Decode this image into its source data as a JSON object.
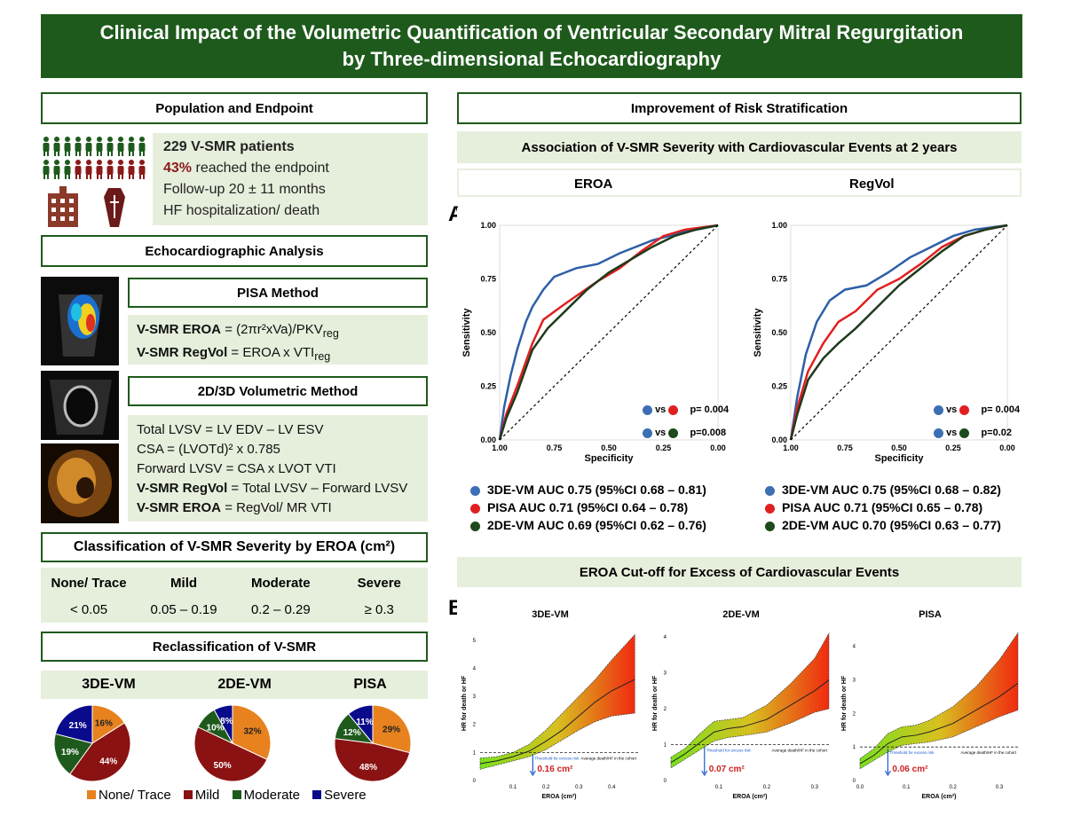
{
  "title": "Clinical Impact of the Volumetric Quantification of Ventricular Secondary Mitral Regurgitation by Three-dimensional Echocardiography",
  "population": {
    "header": "Population and Endpoint",
    "patients": "229 V-SMR patients",
    "endpoint_pct": "43%",
    "endpoint_text": "reached the endpoint",
    "followup": "Follow-up 20 ± 11 months",
    "outcome": "HF hospitalization/ death"
  },
  "echo": {
    "header": "Echocardiographic Analysis",
    "pisa_header": "PISA Method",
    "pisa_eroa_label": "V-SMR EROA",
    "pisa_eroa_formula": "= (2πr²xVa)/PKV",
    "pisa_eroa_sub": "reg",
    "pisa_regvol_label": "V-SMR RegVol",
    "pisa_regvol_formula": "= EROA x VTI",
    "pisa_regvol_sub": "reg",
    "vol_header": "2D/3D Volumetric Method",
    "vol_lines": [
      "Total LVSV = LV EDV – LV ESV",
      "CSA = (LVOTd)² x 0.785",
      "Forward LVSV = CSA x LVOT VTI"
    ],
    "vol_regvol_label": "V-SMR RegVol",
    "vol_regvol_formula": "= Total LVSV – Forward LVSV",
    "vol_eroa_label": "V-SMR EROA",
    "vol_eroa_formula": "= RegVol/ MR VTI"
  },
  "classification": {
    "header": "Classification of V-SMR Severity by EROA (cm²)",
    "columns": [
      "None/ Trace",
      "Mild",
      "Moderate",
      "Severe"
    ],
    "values": [
      "< 0.05",
      "0.05 – 0.19",
      "0.2 – 0.29",
      "≥ 0.3"
    ]
  },
  "reclass": {
    "header": "Reclassification of V-SMR",
    "methods": [
      "3DE-VM",
      "2DE-VM",
      "PISA"
    ],
    "legend": [
      "None/ Trace",
      "Mild",
      "Moderate",
      "Severe"
    ],
    "colors": [
      "#e8821e",
      "#8b1212",
      "#1e5a1c",
      "#0a0a8c"
    ]
  },
  "risk": {
    "header": "Improvement of Risk Stratification",
    "assoc_header": "Association of V-SMR Severity with Cardiovascular Events at 2 years",
    "col_eroa": "EROA",
    "col_regvol": "RegVol",
    "panel_a": "A",
    "panel_b": "B",
    "cutoff_header": "EROA Cut-off for Excess of Cardiovascular Events",
    "roc_eroa_p1": "p= 0.004",
    "roc_eroa_p2": "p=0.008",
    "roc_regvol_p1": "p= 0.004",
    "roc_regvol_p2": "p=0.02",
    "vs": "vs",
    "auc_eroa": [
      "3DE-VM AUC 0.75 (95%CI 0.68 – 0.81)",
      "PISA AUC 0.71 (95%CI 0.64 – 0.78)",
      "2DE-VM AUC 0.69 (95%CI 0.62 – 0.76)"
    ],
    "auc_regvol": [
      "3DE-VM AUC 0.75 (95%CI 0.68 – 0.82)",
      "PISA AUC 0.71 (95%CI 0.65 – 0.78)",
      "2DE-VM AUC 0.70 (95%CI 0.63 – 0.77)"
    ],
    "auc_colors": [
      "#3c6fb4",
      "#e02020",
      "#1e4a1c"
    ]
  },
  "chart_data": [
    {
      "type": "line",
      "title": "EROA",
      "xlabel": "Specificity",
      "ylabel": "Sensitivity",
      "xlim": [
        1.0,
        0.0
      ],
      "ylim": [
        0,
        1
      ],
      "x_ticks": [
        "1.00",
        "0.75",
        "0.50",
        "0.25",
        "0.00"
      ],
      "y_ticks": [
        "0.00",
        "0.25",
        "0.50",
        "0.75",
        "1.00"
      ],
      "series": [
        {
          "name": "3DE-VM",
          "color": "#2e5fa8",
          "fpr": [
            0,
            0.02,
            0.05,
            0.08,
            0.12,
            0.15,
            0.2,
            0.25,
            0.3,
            0.35,
            0.45,
            0.55,
            0.7,
            0.85,
            1
          ],
          "tpr": [
            0,
            0.15,
            0.3,
            0.42,
            0.55,
            0.62,
            0.7,
            0.76,
            0.78,
            0.8,
            0.82,
            0.87,
            0.93,
            0.97,
            1
          ]
        },
        {
          "name": "PISA",
          "color": "#e02020",
          "fpr": [
            0,
            0.03,
            0.08,
            0.15,
            0.2,
            0.28,
            0.35,
            0.45,
            0.55,
            0.65,
            0.75,
            0.85,
            1
          ],
          "tpr": [
            0,
            0.12,
            0.25,
            0.45,
            0.56,
            0.62,
            0.67,
            0.74,
            0.8,
            0.88,
            0.95,
            0.98,
            1
          ]
        },
        {
          "name": "2DE-VM",
          "color": "#1e3a1c",
          "fpr": [
            0,
            0.03,
            0.08,
            0.15,
            0.22,
            0.3,
            0.4,
            0.5,
            0.6,
            0.7,
            0.8,
            0.9,
            1
          ],
          "tpr": [
            0,
            0.1,
            0.22,
            0.42,
            0.52,
            0.6,
            0.7,
            0.78,
            0.84,
            0.9,
            0.95,
            0.98,
            1
          ]
        },
        {
          "name": "reference",
          "color": "#000000",
          "fpr": [
            0,
            1
          ],
          "tpr": [
            0,
            1
          ]
        }
      ]
    },
    {
      "type": "line",
      "title": "RegVol",
      "xlabel": "Specificity",
      "ylabel": "Sensitivity",
      "xlim": [
        1.0,
        0.0
      ],
      "ylim": [
        0,
        1
      ],
      "x_ticks": [
        "1.00",
        "0.75",
        "0.50",
        "0.25",
        "0.00"
      ],
      "y_ticks": [
        "0.00",
        "0.25",
        "0.50",
        "0.75",
        "1.00"
      ],
      "series": [
        {
          "name": "3DE-VM",
          "color": "#2e5fa8",
          "fpr": [
            0,
            0.03,
            0.07,
            0.12,
            0.18,
            0.25,
            0.35,
            0.45,
            0.55,
            0.65,
            0.75,
            0.85,
            1
          ],
          "tpr": [
            0,
            0.2,
            0.4,
            0.55,
            0.65,
            0.7,
            0.72,
            0.78,
            0.85,
            0.9,
            0.95,
            0.98,
            1
          ]
        },
        {
          "name": "PISA",
          "color": "#e02020",
          "fpr": [
            0,
            0.03,
            0.08,
            0.15,
            0.22,
            0.3,
            0.4,
            0.5,
            0.6,
            0.7,
            0.8,
            0.9,
            1
          ],
          "tpr": [
            0,
            0.15,
            0.32,
            0.45,
            0.55,
            0.6,
            0.7,
            0.75,
            0.82,
            0.9,
            0.95,
            0.98,
            1
          ]
        },
        {
          "name": "2DE-VM",
          "color": "#1e3a1c",
          "fpr": [
            0,
            0.03,
            0.08,
            0.15,
            0.22,
            0.3,
            0.4,
            0.5,
            0.6,
            0.7,
            0.8,
            0.9,
            1
          ],
          "tpr": [
            0,
            0.12,
            0.28,
            0.38,
            0.45,
            0.52,
            0.62,
            0.72,
            0.8,
            0.88,
            0.95,
            0.98,
            1
          ]
        },
        {
          "name": "reference",
          "color": "#000000",
          "fpr": [
            0,
            1
          ],
          "tpr": [
            0,
            1
          ]
        }
      ]
    },
    {
      "type": "pie",
      "title": "3DE-VM",
      "categories": [
        "None/ Trace",
        "Mild",
        "Moderate",
        "Severe"
      ],
      "values": [
        16,
        44,
        19,
        21
      ],
      "labels": [
        "16%",
        "44%",
        "19%",
        "21%"
      ]
    },
    {
      "type": "pie",
      "title": "2DE-VM",
      "categories": [
        "None/ Trace",
        "Mild",
        "Moderate",
        "Severe"
      ],
      "values": [
        32,
        50,
        10,
        8
      ],
      "labels": [
        "32%",
        "50%",
        "10%",
        "8%"
      ]
    },
    {
      "type": "pie",
      "title": "PISA",
      "categories": [
        "None/ Trace",
        "Mild",
        "Moderate",
        "Severe"
      ],
      "values": [
        29,
        48,
        12,
        11
      ],
      "labels": [
        "29%",
        "48%",
        "12%",
        "11%"
      ]
    },
    {
      "type": "area",
      "title": "3DE-VM",
      "xlabel": "EROA (cm²)",
      "ylabel": "HR for death or HF",
      "xlim": [
        0,
        0.48
      ],
      "ylim": [
        0,
        5.5
      ],
      "x_ticks": [
        "0.1",
        "0.2",
        "0.3",
        "0.4"
      ],
      "y_ticks": [
        "0",
        "1",
        "2",
        "3",
        "4",
        "5"
      ],
      "x": [
        0,
        0.05,
        0.1,
        0.15,
        0.2,
        0.25,
        0.3,
        0.35,
        0.4,
        0.47
      ],
      "hr": [
        0.6,
        0.7,
        0.85,
        1.05,
        1.4,
        1.8,
        2.3,
        2.8,
        3.2,
        3.6
      ],
      "lower": [
        0.4,
        0.55,
        0.7,
        0.85,
        1.1,
        1.45,
        1.8,
        2.1,
        2.3,
        2.4
      ],
      "upper": [
        0.8,
        0.85,
        1.0,
        1.3,
        1.8,
        2.4,
        3.0,
        3.6,
        4.3,
        5.2
      ],
      "cutoff": 0.16,
      "cutoff_label": "0.16 cm²",
      "reference_line": "Average death/HF in the cohort",
      "threshold_label": "Threshold for excess risk"
    },
    {
      "type": "area",
      "title": "2DE-VM",
      "xlabel": "EROA (cm²)",
      "ylabel": "HR for death or HF",
      "xlim": [
        0,
        0.33
      ],
      "ylim": [
        0,
        4.3
      ],
      "x_ticks": [
        "0.1",
        "0.2",
        "0.3"
      ],
      "y_ticks": [
        "0",
        "1",
        "2",
        "3",
        "4"
      ],
      "x": [
        0,
        0.03,
        0.06,
        0.09,
        0.12,
        0.15,
        0.2,
        0.25,
        0.3,
        0.33
      ],
      "hr": [
        0.5,
        0.75,
        1.05,
        1.35,
        1.45,
        1.5,
        1.7,
        2.1,
        2.5,
        2.8
      ],
      "lower": [
        0.35,
        0.6,
        0.85,
        1.1,
        1.2,
        1.25,
        1.35,
        1.6,
        1.9,
        2.0
      ],
      "upper": [
        0.65,
        0.9,
        1.3,
        1.65,
        1.7,
        1.75,
        2.1,
        2.7,
        3.4,
        4.1
      ],
      "cutoff": 0.07,
      "cutoff_label": "0.07 cm²",
      "reference_line": "Average death/HF in the cohort",
      "threshold_label": "Threshold for excess risk"
    },
    {
      "type": "area",
      "title": "PISA",
      "xlabel": "EROA (cm²)",
      "ylabel": "HR for death or HF",
      "xlim": [
        0,
        0.34
      ],
      "ylim": [
        0,
        4.6
      ],
      "x_ticks": [
        "0.0",
        "0.1",
        "0.2",
        "0.3"
      ],
      "y_ticks": [
        "0",
        "1",
        "2",
        "3",
        "4"
      ],
      "x": [
        0,
        0.03,
        0.06,
        0.09,
        0.12,
        0.15,
        0.2,
        0.25,
        0.3,
        0.34
      ],
      "hr": [
        0.5,
        0.75,
        1.1,
        1.3,
        1.35,
        1.45,
        1.7,
        2.1,
        2.5,
        2.9
      ],
      "lower": [
        0.35,
        0.6,
        0.85,
        1.05,
        1.1,
        1.15,
        1.3,
        1.6,
        1.9,
        2.1
      ],
      "upper": [
        0.65,
        0.95,
        1.4,
        1.6,
        1.65,
        1.8,
        2.2,
        2.8,
        3.6,
        4.4
      ],
      "cutoff": 0.06,
      "cutoff_label": "0.06 cm²",
      "reference_line": "Average death/HF in the cohort",
      "threshold_label": "Threshold for excess risk"
    }
  ]
}
